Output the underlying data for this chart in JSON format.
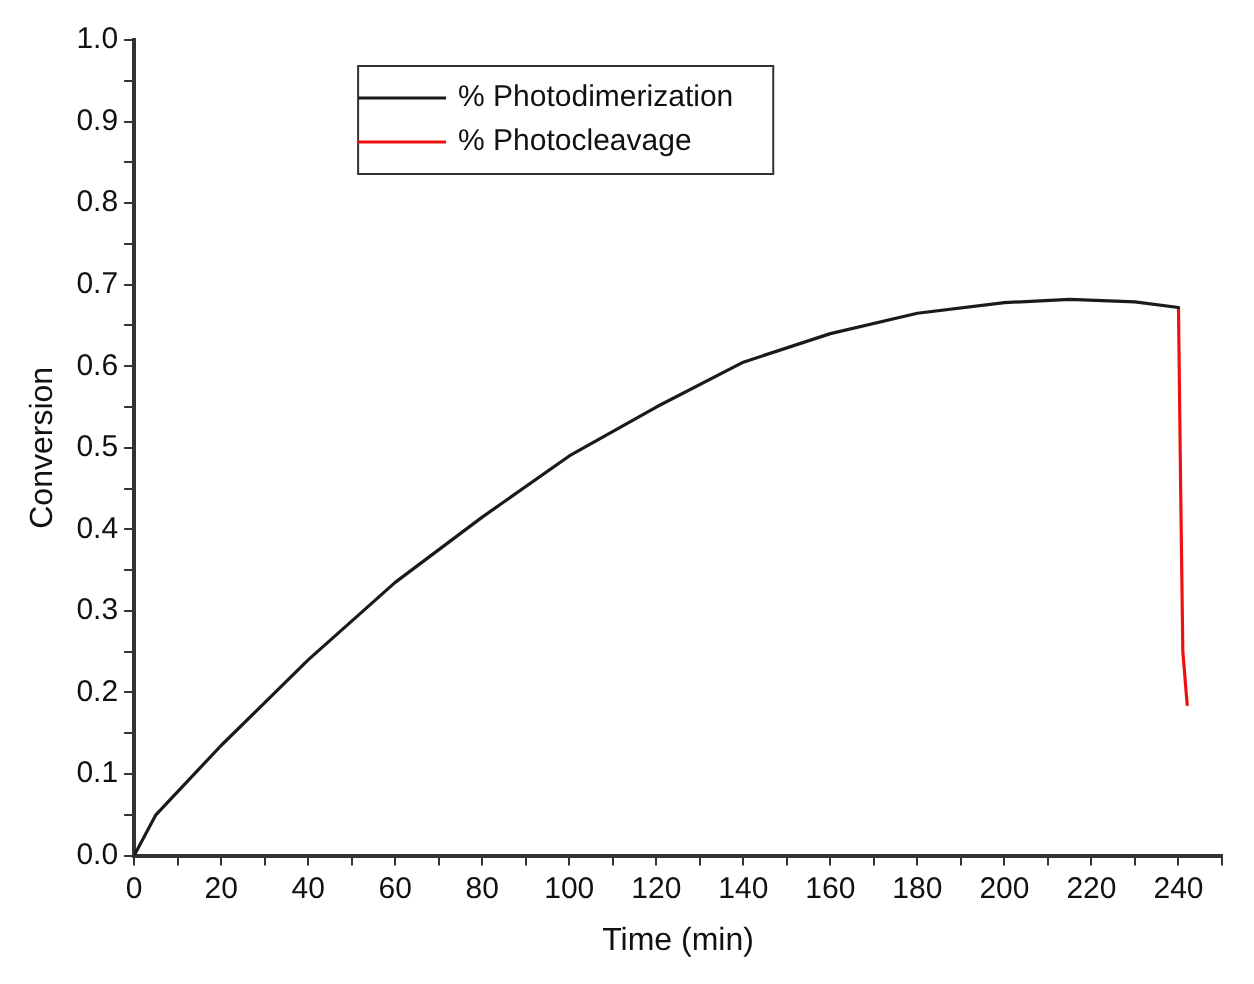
{
  "chart_data": {
    "type": "line",
    "xlabel": "Time (min)",
    "ylabel": "Conversion",
    "xlim": [
      0,
      250
    ],
    "ylim": [
      0,
      1
    ],
    "xticks": [
      0,
      {
        "value": 10,
        "label": null
      },
      20,
      {
        "value": 30,
        "label": null
      },
      40,
      {
        "value": 50,
        "label": null
      },
      60,
      {
        "value": 70,
        "label": null
      },
      80,
      {
        "value": 90,
        "label": null
      },
      100,
      {
        "value": 110,
        "label": null
      },
      120,
      {
        "value": 130,
        "label": null
      },
      140,
      {
        "value": 150,
        "label": null
      },
      160,
      {
        "value": 170,
        "label": null
      },
      180,
      {
        "value": 190,
        "label": null
      },
      200,
      {
        "value": 210,
        "label": null
      },
      220,
      {
        "value": 230,
        "label": null
      },
      240,
      {
        "value": 250,
        "label": null
      }
    ],
    "yticks": [
      {
        "value": 0,
        "label": "0.0"
      },
      {
        "value": 0.05,
        "label": null
      },
      0.1,
      {
        "value": 0.15,
        "label": null
      },
      0.2,
      {
        "value": 0.25,
        "label": null
      },
      0.3,
      {
        "value": 0.35,
        "label": null
      },
      0.4,
      {
        "value": 0.45,
        "label": null
      },
      0.5,
      {
        "value": 0.55,
        "label": null
      },
      0.6,
      {
        "value": 0.65,
        "label": null
      },
      0.7,
      {
        "value": 0.75,
        "label": null
      },
      0.8,
      {
        "value": 0.85,
        "label": null
      },
      0.9,
      {
        "value": 0.95,
        "label": null
      },
      {
        "value": 1,
        "label": "1.0"
      }
    ],
    "grid": false,
    "legend": "top",
    "marker": "none",
    "line_style": "solid",
    "series": [
      {
        "name": "% Photodimerization",
        "color": "#1a1a1a",
        "x": [
          0,
          5,
          20,
          40,
          60,
          80,
          100,
          120,
          140,
          160,
          180,
          200,
          215,
          230,
          240
        ],
        "values": [
          0,
          0.05,
          0.135,
          0.24,
          0.335,
          0.415,
          0.49,
          0.55,
          0.605,
          0.64,
          0.665,
          0.678,
          0.682,
          0.679,
          0.672
        ]
      },
      {
        "name": "% Photocleavage",
        "color": "#ee1111",
        "x": [
          240,
          240.5,
          241,
          242
        ],
        "values": [
          0.672,
          0.45,
          0.25,
          0.185
        ]
      }
    ]
  }
}
